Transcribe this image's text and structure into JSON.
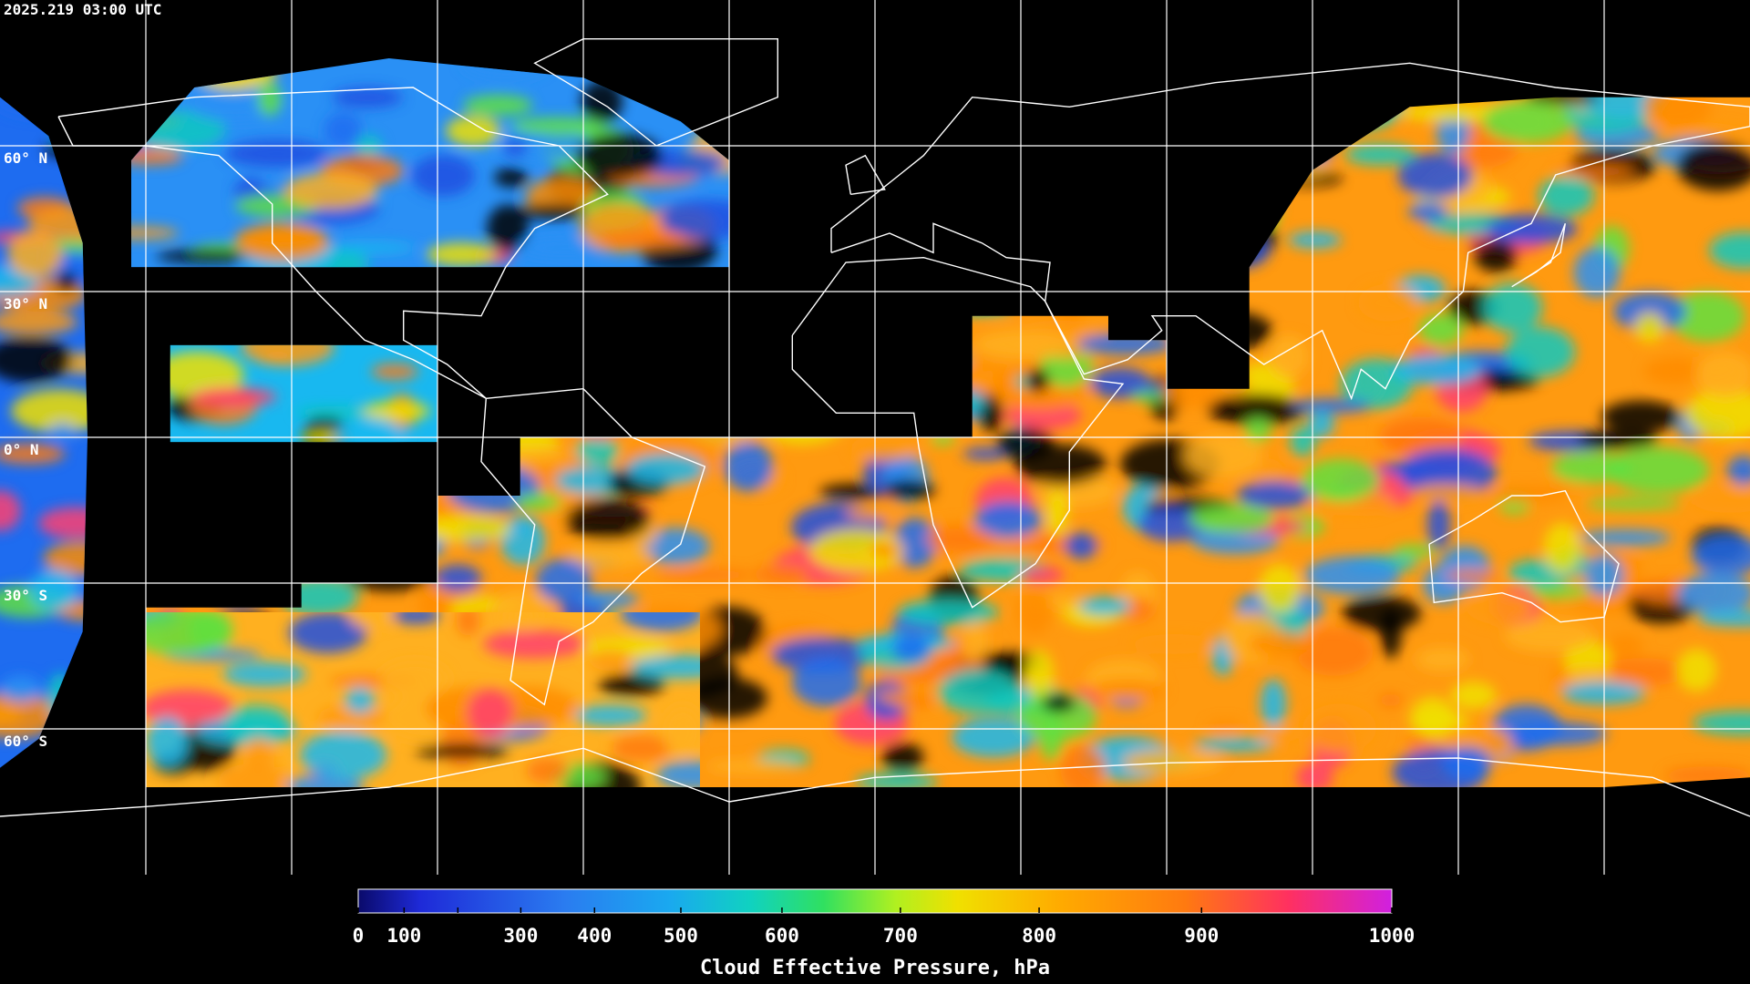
{
  "chart_data": {
    "type": "map",
    "title": "2025.219 03:00 UTC",
    "lat_lines": [
      {
        "value": 60,
        "label": "60° N"
      },
      {
        "value": 30,
        "label": "30° N"
      },
      {
        "value": 0,
        "label": "0° N"
      },
      {
        "value": -30,
        "label": "30° S"
      },
      {
        "value": -60,
        "label": "60° S"
      }
    ],
    "lon_lines": [
      -150,
      -120,
      -90,
      -60,
      -30,
      0,
      30,
      60,
      90,
      120,
      150
    ],
    "colorbar": {
      "label": "Cloud Effective Pressure, hPa",
      "range": [
        0,
        1000
      ],
      "ticks": [
        0,
        100,
        300,
        400,
        500,
        600,
        700,
        800,
        900,
        1000
      ],
      "minor_ticks": [
        200
      ]
    }
  }
}
